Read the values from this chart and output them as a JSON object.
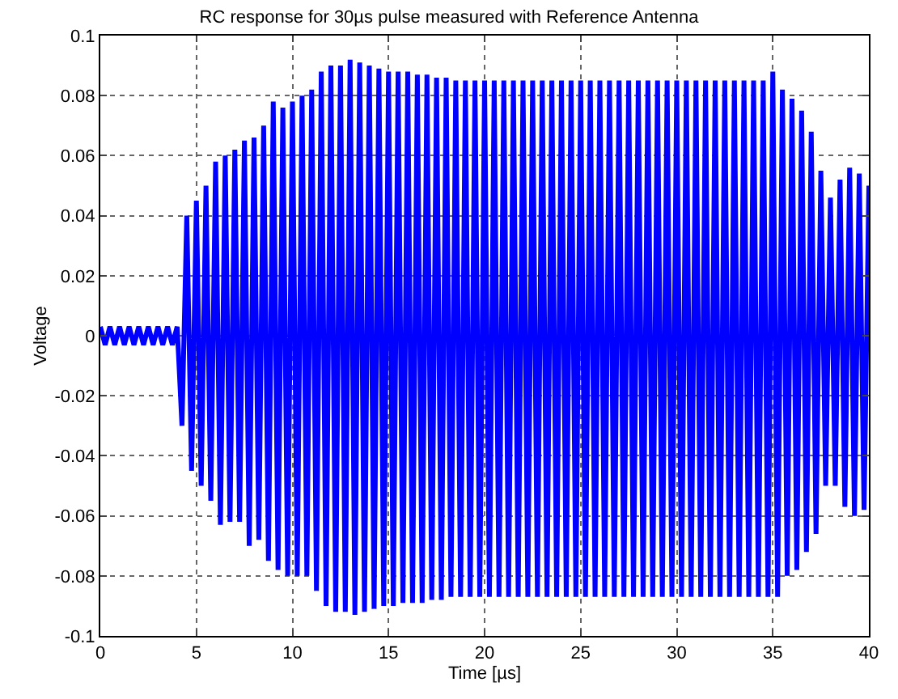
{
  "chart_data": {
    "type": "line",
    "title": "RC response for 30µs pulse measured with Reference Antenna",
    "xlabel": "Time [µs]",
    "ylabel": "Voltage",
    "series": [
      {
        "color": "#0000ff",
        "values": [
          0.003,
          -0.003,
          0.003,
          -0.003,
          0.003,
          -0.003,
          0.003,
          -0.003,
          0.003,
          -0.003,
          0.003,
          -0.003,
          0.003,
          -0.003,
          0.003,
          -0.003,
          0.003,
          -0.03,
          0.04,
          -0.045,
          0.045,
          -0.05,
          0.05,
          -0.055,
          0.058,
          -0.063,
          0.06,
          -0.062,
          0.062,
          -0.062,
          0.065,
          -0.07,
          0.066,
          -0.068,
          0.07,
          -0.075,
          0.078,
          -0.078,
          0.076,
          -0.08,
          0.078,
          -0.08,
          0.08,
          -0.08,
          0.082,
          -0.085,
          0.088,
          -0.09,
          0.09,
          -0.092,
          0.09,
          -0.092,
          0.092,
          -0.093,
          0.091,
          -0.092,
          0.09,
          -0.091,
          0.089,
          -0.09,
          0.088,
          -0.09,
          0.088,
          -0.089,
          0.088,
          -0.089,
          0.087,
          -0.089,
          0.087,
          -0.088,
          0.086,
          -0.088,
          0.086,
          -0.087,
          0.085,
          -0.087,
          0.085,
          -0.087,
          0.085,
          -0.087,
          0.085,
          -0.087,
          0.085,
          -0.087,
          0.085,
          -0.087,
          0.085,
          -0.087,
          0.085,
          -0.087,
          0.085,
          -0.087,
          0.085,
          -0.087,
          0.085,
          -0.087,
          0.085,
          -0.087,
          0.085,
          -0.087,
          0.085,
          -0.087,
          0.085,
          -0.087,
          0.085,
          -0.087,
          0.085,
          -0.087,
          0.085,
          -0.087,
          0.085,
          -0.087,
          0.085,
          -0.087,
          0.085,
          -0.087,
          0.085,
          -0.087,
          0.085,
          -0.087,
          0.085,
          -0.087,
          0.085,
          -0.087,
          0.085,
          -0.087,
          0.085,
          -0.087,
          0.085,
          -0.087,
          0.085,
          -0.087,
          0.085,
          -0.087,
          0.085,
          -0.087,
          0.085,
          -0.087,
          0.085,
          -0.087,
          0.088,
          -0.087,
          0.082,
          -0.08,
          0.079,
          -0.078,
          0.075,
          -0.072,
          0.068,
          -0.066,
          0.055,
          -0.05,
          0.046,
          -0.05,
          0.052,
          -0.057,
          0.056,
          -0.06,
          0.054,
          -0.058,
          0.05
        ]
      }
    ],
    "x": [
      0,
      0.25,
      0.5,
      0.75,
      1,
      1.25,
      1.5,
      1.75,
      2,
      2.25,
      2.5,
      2.75,
      3,
      3.25,
      3.5,
      3.75,
      4,
      4.25,
      4.5,
      4.75,
      5,
      5.25,
      5.5,
      5.75,
      6,
      6.25,
      6.5,
      6.75,
      7,
      7.25,
      7.5,
      7.75,
      8,
      8.25,
      8.5,
      8.75,
      9,
      9.25,
      9.5,
      9.75,
      10,
      10.25,
      10.5,
      10.75,
      11,
      11.25,
      11.5,
      11.75,
      12,
      12.25,
      12.5,
      12.75,
      13,
      13.25,
      13.5,
      13.75,
      14,
      14.25,
      14.5,
      14.75,
      15,
      15.25,
      15.5,
      15.75,
      16,
      16.25,
      16.5,
      16.75,
      17,
      17.25,
      17.5,
      17.75,
      18,
      18.25,
      18.5,
      18.75,
      19,
      19.25,
      19.5,
      19.75,
      20,
      20.25,
      20.5,
      20.75,
      21,
      21.25,
      21.5,
      21.75,
      22,
      22.25,
      22.5,
      22.75,
      23,
      23.25,
      23.5,
      23.75,
      24,
      24.25,
      24.5,
      24.75,
      25,
      25.25,
      25.5,
      25.75,
      26,
      26.25,
      26.5,
      26.75,
      27,
      27.25,
      27.5,
      27.75,
      28,
      28.25,
      28.5,
      28.75,
      29,
      29.25,
      29.5,
      29.75,
      30,
      30.25,
      30.5,
      30.75,
      31,
      31.25,
      31.5,
      31.75,
      32,
      32.25,
      32.5,
      32.75,
      33,
      33.25,
      33.5,
      33.75,
      34,
      34.25,
      34.5,
      34.75,
      35,
      35.25,
      35.5,
      35.75,
      36,
      36.25,
      36.5,
      36.75,
      37,
      37.25,
      37.5,
      37.75,
      38,
      38.25,
      38.5,
      38.75,
      39,
      39.25,
      39.5,
      39.75,
      40
    ],
    "xlim": [
      0,
      40
    ],
    "xticks": [
      0,
      5,
      10,
      15,
      20,
      25,
      30,
      35,
      40
    ],
    "ylim": [
      -0.1,
      0.1
    ],
    "yticks": [
      -0.1,
      -0.08,
      -0.06,
      -0.04,
      -0.02,
      0,
      0.02,
      0.04,
      0.06,
      0.08,
      0.1
    ],
    "grid": true
  }
}
